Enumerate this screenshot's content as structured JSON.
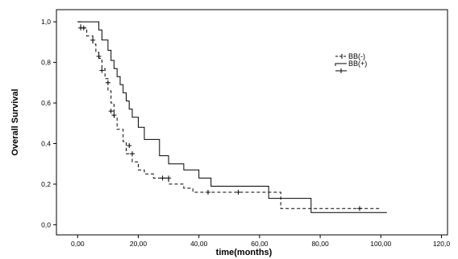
{
  "chart_data": {
    "type": "line",
    "subtype": "kaplan-meier-step",
    "xlabel": "time(months)",
    "ylabel": "Overall Survival",
    "xlim": [
      0,
      120
    ],
    "ylim": [
      0,
      1.0
    ],
    "x_ticks": [
      0,
      20,
      40,
      60,
      80,
      100,
      120
    ],
    "x_tick_labels": [
      "0,00",
      "20,00",
      "40,00",
      "60,00",
      "80,00",
      "100,00",
      "120,0"
    ],
    "y_ticks": [
      0,
      0.2,
      0.4,
      0.6,
      0.8,
      1.0
    ],
    "y_tick_labels": [
      "0,0",
      "0,2",
      "0,4",
      "0,6",
      "0,8",
      "1,0"
    ],
    "grid": false,
    "legend_position": "top-right",
    "series": [
      {
        "name": "BB(-)",
        "style": "dashed",
        "color": "#000000",
        "x": [
          0,
          1,
          3,
          5,
          6,
          7,
          8,
          9,
          10,
          11,
          12,
          13,
          15,
          16,
          18,
          20,
          22,
          25,
          30,
          35,
          38,
          45,
          55,
          60,
          65,
          67,
          70,
          80,
          90,
          100
        ],
        "y": [
          1.0,
          0.97,
          0.93,
          0.89,
          0.85,
          0.82,
          0.77,
          0.72,
          0.66,
          0.6,
          0.53,
          0.47,
          0.41,
          0.35,
          0.31,
          0.27,
          0.25,
          0.23,
          0.2,
          0.18,
          0.16,
          0.16,
          0.16,
          0.16,
          0.16,
          0.08,
          0.08,
          0.08,
          0.08,
          0.08
        ],
        "censored_x": [
          1,
          2,
          5,
          7,
          8,
          10,
          11,
          12,
          17,
          18,
          28,
          30,
          43,
          53,
          93
        ],
        "censored_y": [
          0.97,
          0.97,
          0.91,
          0.83,
          0.76,
          0.7,
          0.56,
          0.54,
          0.39,
          0.35,
          0.23,
          0.23,
          0.16,
          0.16,
          0.08
        ]
      },
      {
        "name": "BB(+)",
        "style": "solid",
        "color": "#000000",
        "x": [
          0,
          5,
          7,
          8,
          10,
          11,
          12,
          13,
          14,
          15,
          16,
          17,
          18,
          20,
          22,
          27,
          30,
          35,
          40,
          44,
          50,
          55,
          60,
          63,
          70,
          77,
          80,
          90,
          100,
          102
        ],
        "y": [
          1.0,
          1.0,
          0.96,
          0.91,
          0.86,
          0.81,
          0.77,
          0.73,
          0.69,
          0.65,
          0.61,
          0.57,
          0.53,
          0.48,
          0.42,
          0.34,
          0.3,
          0.27,
          0.23,
          0.19,
          0.19,
          0.19,
          0.19,
          0.13,
          0.13,
          0.06,
          0.06,
          0.06,
          0.06,
          0.06
        ]
      }
    ]
  }
}
